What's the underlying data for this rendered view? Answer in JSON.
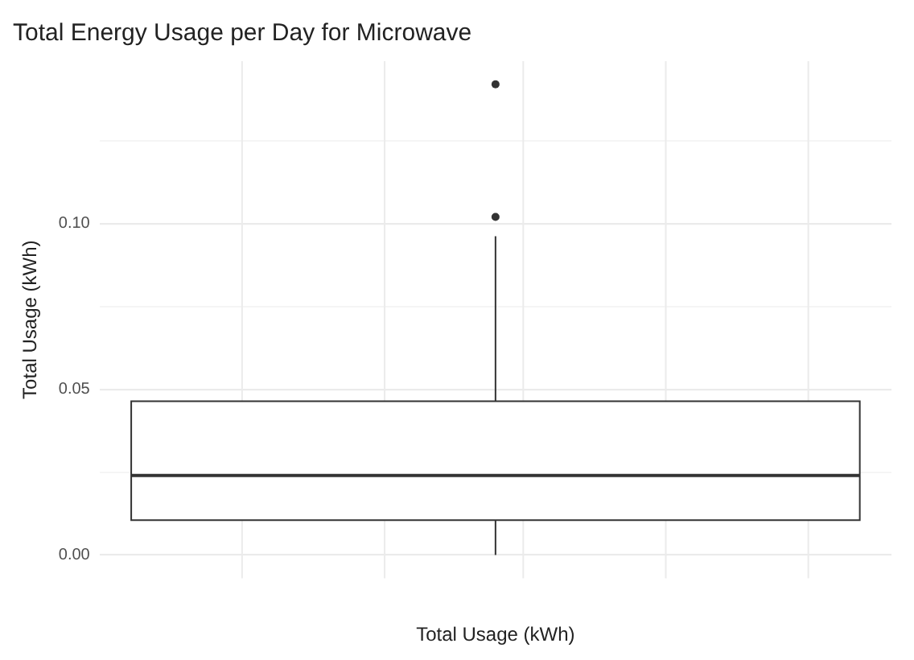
{
  "chart_data": {
    "type": "box",
    "title": "Total Energy Usage per Day for Microwave",
    "xlabel": "Total Usage (kWh)",
    "ylabel": "Total Usage (kWh)",
    "categories": [
      null
    ],
    "boxes": [
      {
        "low": 0,
        "q1": 0.0105,
        "median": 0.024,
        "q3": 0.0464,
        "high": 0.0962,
        "outliers": [
          0.102,
          0.142
        ]
      }
    ],
    "ylim": [
      -0.007,
      0.149
    ],
    "yticks": [
      {
        "value": 0,
        "label": "0.00"
      },
      {
        "value": 0.025,
        "label": null
      },
      {
        "value": 0.05,
        "label": "0.05"
      },
      {
        "value": 0.075,
        "label": null
      },
      {
        "value": 0.1,
        "label": "0.10"
      },
      {
        "value": 0.125,
        "label": null
      }
    ],
    "grid": true
  }
}
